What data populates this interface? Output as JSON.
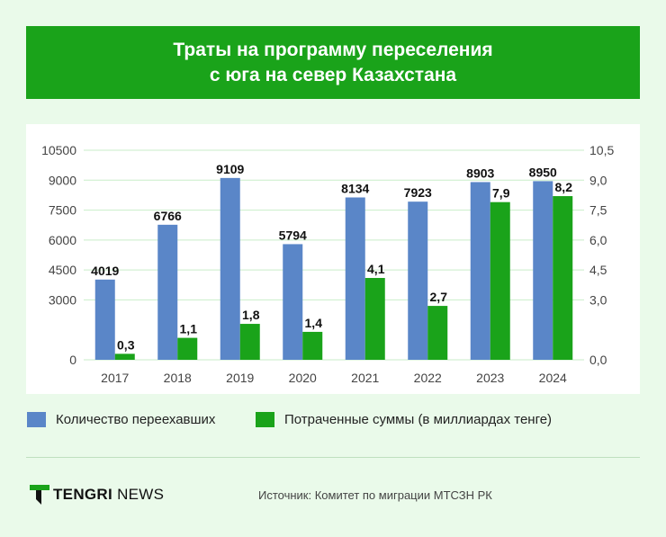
{
  "title": {
    "line1": "Траты на программу переселения",
    "line2": "с юга на север Казахстана"
  },
  "colors": {
    "banner": "#1aa31a",
    "background": "#eafaea",
    "series1": "#5a86c8",
    "series2": "#1aa31a",
    "grid": "#c9eec9"
  },
  "legend": [
    {
      "label": "Количество переехавших",
      "color": "#5a86c8"
    },
    {
      "label": "Потраченные суммы (в миллиардах тенге)",
      "color": "#1aa31a"
    }
  ],
  "chart_data": {
    "type": "bar",
    "title": "Траты на программу переселения с юга на север Казахстана",
    "categories": [
      "2017",
      "2018",
      "2019",
      "2020",
      "2021",
      "2022",
      "2023",
      "2024"
    ],
    "series": [
      {
        "name": "Количество переехавших",
        "axis": "left",
        "values": [
          4019,
          6766,
          9109,
          5794,
          8134,
          7923,
          8903,
          8950
        ],
        "labels": [
          "4019",
          "6766",
          "9109",
          "5794",
          "8134",
          "7923",
          "8903",
          "8950"
        ]
      },
      {
        "name": "Потраченные суммы (в миллиардах тенге)",
        "axis": "right",
        "values": [
          0.3,
          1.1,
          1.8,
          1.4,
          4.1,
          2.7,
          7.9,
          8.2
        ],
        "labels": [
          "0,3",
          "1,1",
          "1,8",
          "1,4",
          "4,1",
          "2,7",
          "7,9",
          "8,2"
        ]
      }
    ],
    "y_left": {
      "ylim": [
        0,
        10500
      ],
      "ticks": [
        "0",
        "3000",
        "4500",
        "6000",
        "7500",
        "9000",
        "10500"
      ],
      "tick_values": [
        0,
        3000,
        4500,
        6000,
        7500,
        9000,
        10500
      ]
    },
    "y_right": {
      "ylim": [
        0,
        10.5
      ],
      "ticks": [
        "0,0",
        "3,0",
        "4,5",
        "6,0",
        "7,5",
        "9,0",
        "10,5"
      ],
      "tick_values": [
        0,
        3,
        4.5,
        6,
        7.5,
        9,
        10.5
      ]
    },
    "grid": true,
    "legend_position": "bottom"
  },
  "brand": {
    "logo_bold": "TENGRI",
    "logo_light": "NEWS"
  },
  "source": "Источник: Комитет по миграции МТСЗН РК"
}
